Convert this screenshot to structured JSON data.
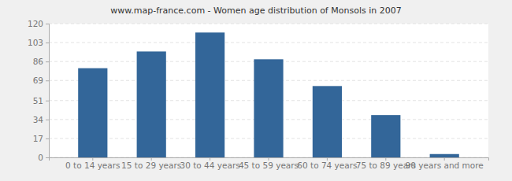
{
  "chart_data": {
    "type": "bar",
    "title": "www.map-france.com - Women age distribution of Monsols in 2007",
    "categories": [
      "0 to 14 years",
      "15 to 29 years",
      "30 to 44 years",
      "45 to 59 years",
      "60 to 74 years",
      "75 to 89 years",
      "90 years and more"
    ],
    "values": [
      80,
      95,
      112,
      88,
      64,
      38,
      3
    ],
    "color": "#336699",
    "ylim": [
      0,
      120
    ],
    "yticks": [
      0,
      17,
      34,
      51,
      69,
      86,
      103,
      120
    ],
    "grid": true
  }
}
